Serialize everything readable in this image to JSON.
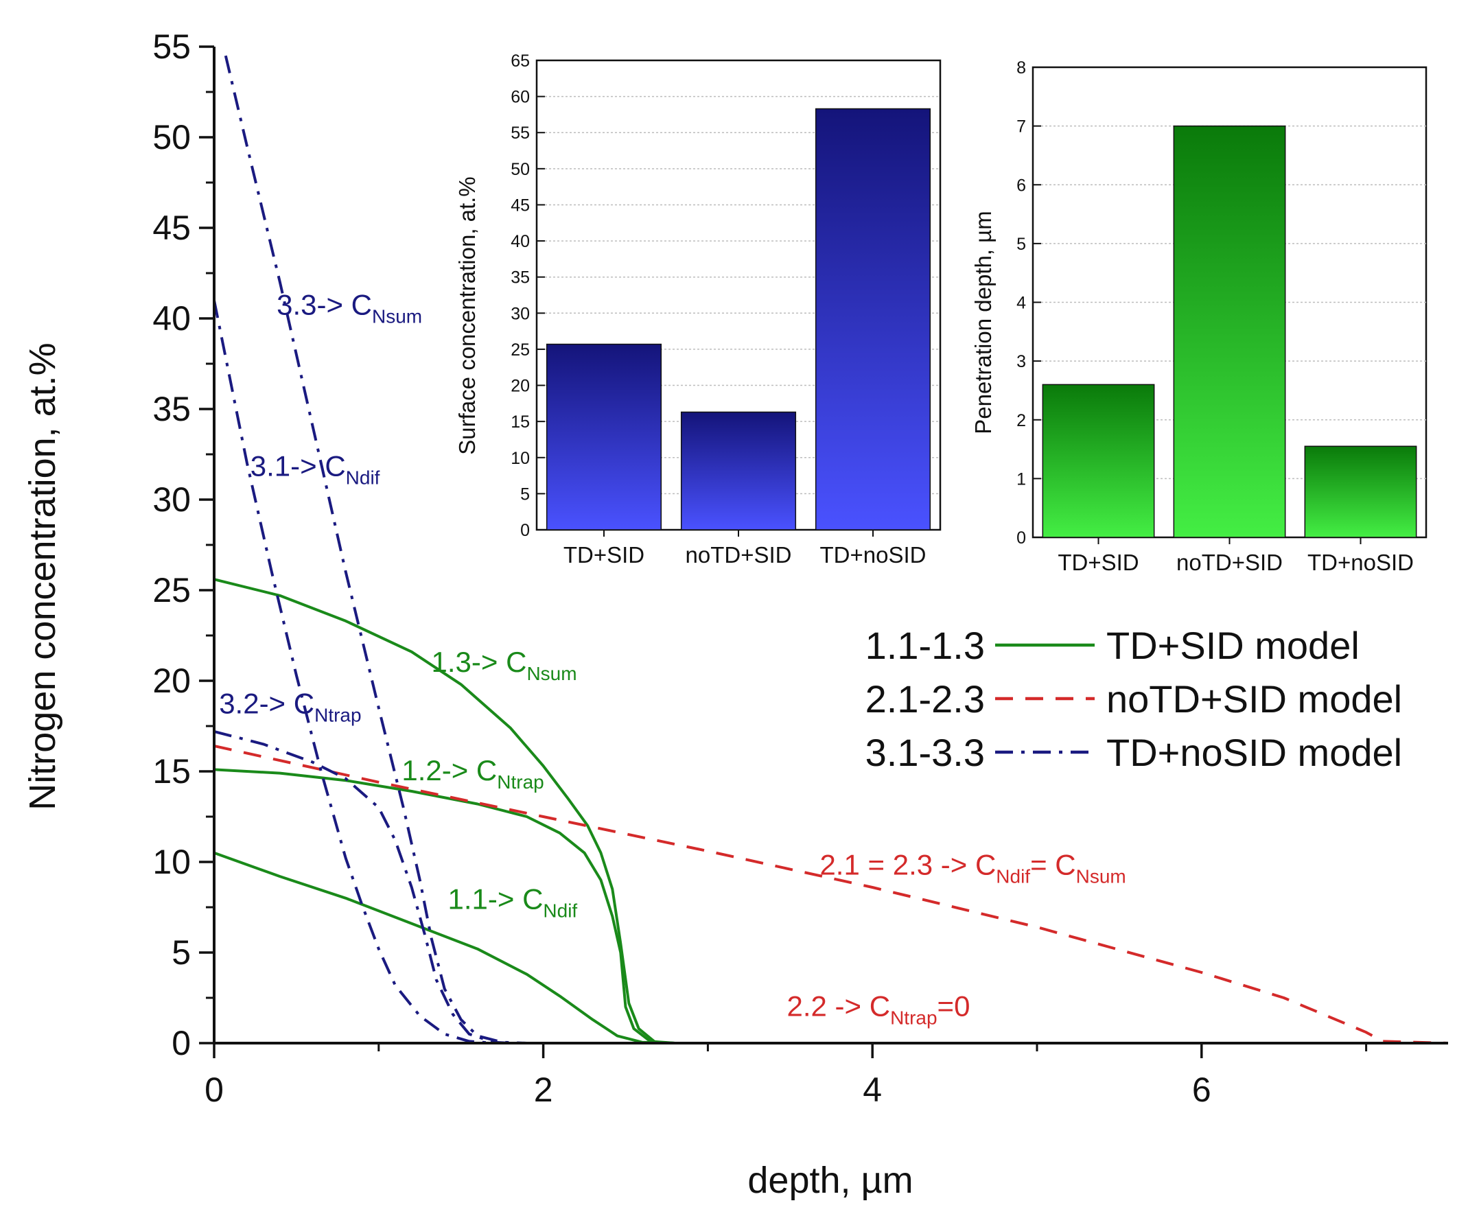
{
  "colors": {
    "green": "#1a8a1a",
    "red": "#d42a2a",
    "navy": "#1a1a80",
    "axis": "#111111",
    "grid": "#bdbdbd",
    "blue_bar_top": "#14147a",
    "blue_bar_bottom": "#4a52ff",
    "green_bar_top": "#0a7a0a",
    "green_bar_bottom": "#44ee44"
  },
  "chart_data": [
    {
      "type": "line",
      "id": "main",
      "xlabel": "depth, µm",
      "ylabel": "Nitrogen concentration, at.%",
      "xlim": [
        0,
        7.5
      ],
      "ylim": [
        0,
        55
      ],
      "xticks": [
        "0",
        "2",
        "4",
        "6"
      ],
      "yticks": [
        "0",
        "5",
        "10",
        "15",
        "20",
        "25",
        "30",
        "35",
        "40",
        "45",
        "50",
        "55"
      ],
      "legend": [
        {
          "range": "1.1-1.3",
          "label": "TD+SID model",
          "style": "solid",
          "color": "#1a8a1a"
        },
        {
          "range": "2.1-2.3",
          "label": "noTD+SID model",
          "style": "dash",
          "color": "#d42a2a"
        },
        {
          "range": "3.1-3.3",
          "label": "TD+noSID model",
          "style": "dashdot",
          "color": "#1a1a80"
        }
      ],
      "series": [
        {
          "name": "1.1",
          "group": "TD+SID",
          "style": "solid",
          "color": "#1a8a1a",
          "points": [
            [
              0,
              10.5
            ],
            [
              0.4,
              9.2
            ],
            [
              0.8,
              8.0
            ],
            [
              1.2,
              6.6
            ],
            [
              1.6,
              5.2
            ],
            [
              1.9,
              3.8
            ],
            [
              2.1,
              2.6
            ],
            [
              2.3,
              1.3
            ],
            [
              2.45,
              0.4
            ],
            [
              2.6,
              0.05
            ],
            [
              2.8,
              0
            ],
            [
              7.5,
              0
            ]
          ]
        },
        {
          "name": "1.2",
          "group": "TD+SID",
          "style": "solid",
          "color": "#1a8a1a",
          "points": [
            [
              0,
              15.1
            ],
            [
              0.4,
              14.9
            ],
            [
              0.8,
              14.5
            ],
            [
              1.2,
              13.9
            ],
            [
              1.6,
              13.2
            ],
            [
              1.9,
              12.5
            ],
            [
              2.1,
              11.6
            ],
            [
              2.25,
              10.5
            ],
            [
              2.35,
              9.0
            ],
            [
              2.42,
              7.0
            ],
            [
              2.47,
              5.0
            ],
            [
              2.5,
              2.0
            ],
            [
              2.55,
              0.8
            ],
            [
              2.65,
              0.1
            ],
            [
              2.8,
              0
            ],
            [
              7.5,
              0
            ]
          ]
        },
        {
          "name": "1.3",
          "group": "TD+SID",
          "style": "solid",
          "color": "#1a8a1a",
          "points": [
            [
              0,
              25.6
            ],
            [
              0.4,
              24.7
            ],
            [
              0.8,
              23.3
            ],
            [
              1.2,
              21.6
            ],
            [
              1.5,
              19.8
            ],
            [
              1.8,
              17.4
            ],
            [
              2.0,
              15.3
            ],
            [
              2.15,
              13.5
            ],
            [
              2.27,
              12.0
            ],
            [
              2.35,
              10.5
            ],
            [
              2.42,
              8.5
            ],
            [
              2.47,
              5.5
            ],
            [
              2.52,
              2.2
            ],
            [
              2.58,
              0.8
            ],
            [
              2.68,
              0.05
            ],
            [
              2.8,
              0
            ],
            [
              7.5,
              0
            ]
          ]
        },
        {
          "name": "2.1 = 2.3",
          "group": "noTD+SID",
          "style": "dash",
          "color": "#d42a2a",
          "points": [
            [
              0,
              16.4
            ],
            [
              1.0,
              14.4
            ],
            [
              2.0,
              12.5
            ],
            [
              3.0,
              10.6
            ],
            [
              4.0,
              8.6
            ],
            [
              5.0,
              6.4
            ],
            [
              6.0,
              3.9
            ],
            [
              6.5,
              2.5
            ],
            [
              7.0,
              0.6
            ],
            [
              7.1,
              0.1
            ],
            [
              7.5,
              0
            ]
          ]
        },
        {
          "name": "2.2",
          "group": "noTD+SID",
          "style": "dash",
          "color": "#d42a2a",
          "points": [
            [
              0,
              0
            ],
            [
              7.5,
              0
            ]
          ]
        },
        {
          "name": "3.1",
          "group": "TD+noSID",
          "style": "dashdot",
          "color": "#1a1a80",
          "points": [
            [
              0,
              41
            ],
            [
              0.1,
              36.5
            ],
            [
              0.2,
              32
            ],
            [
              0.35,
              26
            ],
            [
              0.5,
              20.3
            ],
            [
              0.65,
              15
            ],
            [
              0.8,
              10.2
            ],
            [
              0.9,
              7.6
            ],
            [
              1.0,
              5.2
            ],
            [
              1.1,
              3.2
            ],
            [
              1.25,
              1.5
            ],
            [
              1.4,
              0.5
            ],
            [
              1.55,
              0.1
            ],
            [
              1.7,
              0
            ],
            [
              7.5,
              0
            ]
          ]
        },
        {
          "name": "3.2",
          "group": "TD+noSID",
          "style": "dashdot",
          "color": "#1a1a80",
          "points": [
            [
              0,
              17.2
            ],
            [
              0.3,
              16.5
            ],
            [
              0.6,
              15.5
            ],
            [
              0.8,
              14.6
            ],
            [
              1.0,
              13.0
            ],
            [
              1.1,
              11.2
            ],
            [
              1.2,
              8.6
            ],
            [
              1.28,
              6.0
            ],
            [
              1.35,
              3.5
            ],
            [
              1.45,
              1.6
            ],
            [
              1.55,
              0.5
            ],
            [
              1.7,
              0.05
            ],
            [
              1.8,
              0
            ],
            [
              7.5,
              0
            ]
          ]
        },
        {
          "name": "3.3",
          "group": "TD+noSID",
          "style": "dashdot",
          "color": "#1a1a80",
          "points": [
            [
              0.07,
              54.5
            ],
            [
              0.2,
              49.5
            ],
            [
              0.4,
              42
            ],
            [
              0.6,
              34
            ],
            [
              0.8,
              26
            ],
            [
              1.0,
              18.5
            ],
            [
              1.15,
              13
            ],
            [
              1.25,
              9
            ],
            [
              1.32,
              5.8
            ],
            [
              1.4,
              3.0
            ],
            [
              1.5,
              1.3
            ],
            [
              1.6,
              0.4
            ],
            [
              1.75,
              0.05
            ],
            [
              1.9,
              0
            ],
            [
              7.5,
              0
            ]
          ]
        }
      ],
      "annotations": [
        {
          "main": "1.1-> C",
          "sub": "Ndif",
          "tail": "",
          "color": "#1a8a1a",
          "x": 1.42,
          "y": 7.4
        },
        {
          "main": "1.2-> C",
          "sub": "Ntrap",
          "tail": "",
          "color": "#1a8a1a",
          "x": 1.14,
          "y": 14.5
        },
        {
          "main": "1.3-> C",
          "sub": "Nsum",
          "tail": "",
          "color": "#1a8a1a",
          "x": 1.32,
          "y": 20.5
        },
        {
          "main": "2.1 = 2.3 -> C",
          "sub": "Ndif",
          "tail": "= C",
          "sub2": "Nsum",
          "color": "#d42a2a",
          "x": 3.68,
          "y": 9.3
        },
        {
          "main": "2.2 -> C",
          "sub": "Ntrap",
          "tail": "=0",
          "color": "#d42a2a",
          "x": 3.48,
          "y": 1.5
        },
        {
          "main": "3.1-> C",
          "sub": "Ndif",
          "tail": "",
          "color": "#1a1a80",
          "x": 0.22,
          "y": 31.3
        },
        {
          "main": "3.2-> C",
          "sub": "Ntrap",
          "tail": "",
          "color": "#1a1a80",
          "x": 0.03,
          "y": 18.2
        },
        {
          "main": "3.3-> C",
          "sub": "Nsum",
          "tail": "",
          "color": "#1a1a80",
          "x": 0.38,
          "y": 40.2
        }
      ]
    },
    {
      "type": "bar",
      "id": "inset-surface",
      "ylabel": "Surface concentration, at.%",
      "categories": [
        "TD+SID",
        "noTD+SID",
        "TD+noSID"
      ],
      "values": [
        25.7,
        16.3,
        58.3
      ],
      "ylim": [
        0,
        65
      ],
      "yticks": [
        "0",
        "5",
        "10",
        "15",
        "20",
        "25",
        "30",
        "35",
        "40",
        "45",
        "50",
        "55",
        "60",
        "65"
      ],
      "grid": true
    },
    {
      "type": "bar",
      "id": "inset-depth",
      "ylabel": "Penetration depth, µm",
      "categories": [
        "TD+SID",
        "noTD+SID",
        "TD+noSID"
      ],
      "values": [
        2.6,
        7.0,
        1.55
      ],
      "ylim": [
        0,
        8
      ],
      "yticks": [
        "0",
        "1",
        "2",
        "3",
        "4",
        "5",
        "6",
        "7",
        "8"
      ],
      "grid": true
    }
  ]
}
